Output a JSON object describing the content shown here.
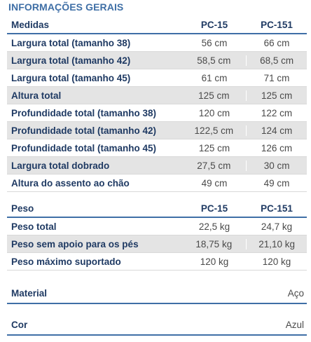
{
  "title": "INFORMAÇÕES GERAIS",
  "measures": {
    "headers": [
      "Medidas",
      "PC-15",
      "PC-151"
    ],
    "rows": [
      {
        "label": "Largura total (tamanho 38)",
        "pc15": "56 cm",
        "pc151": "66 cm"
      },
      {
        "label": "Largura total (tamanho 42)",
        "pc15": "58,5 cm",
        "pc151": "68,5 cm"
      },
      {
        "label": "Largura total (tamanho 45)",
        "pc15": "61 cm",
        "pc151": "71 cm"
      },
      {
        "label": "Altura total",
        "pc15": "125 cm",
        "pc151": "125 cm"
      },
      {
        "label": "Profundidade total (tamanho 38)",
        "pc15": "120 cm",
        "pc151": "122 cm"
      },
      {
        "label": "Profundidade total (tamanho 42)",
        "pc15": "122,5 cm",
        "pc151": "124 cm"
      },
      {
        "label": "Profundidade total (tamanho 45)",
        "pc15": "125 cm",
        "pc151": "126 cm"
      },
      {
        "label": "Largura total dobrado",
        "pc15": "27,5 cm",
        "pc151": "30 cm"
      },
      {
        "label": "Altura do assento ao chão",
        "pc15": "49 cm",
        "pc151": "49 cm"
      }
    ]
  },
  "weight": {
    "headers": [
      "Peso",
      "PC-15",
      "PC-151"
    ],
    "rows": [
      {
        "label": "Peso total",
        "pc15": "22,5 kg",
        "pc151": "24,7 kg"
      },
      {
        "label": "Peso sem apoio para os pés",
        "pc15": "18,75 kg",
        "pc151": "21,10 kg"
      },
      {
        "label": "Peso máximo suportado",
        "pc15": "120 kg",
        "pc151": "120 kg"
      }
    ]
  },
  "material": {
    "label": "Material",
    "value": "Aço"
  },
  "color": {
    "label": "Cor",
    "value": "Azul"
  }
}
